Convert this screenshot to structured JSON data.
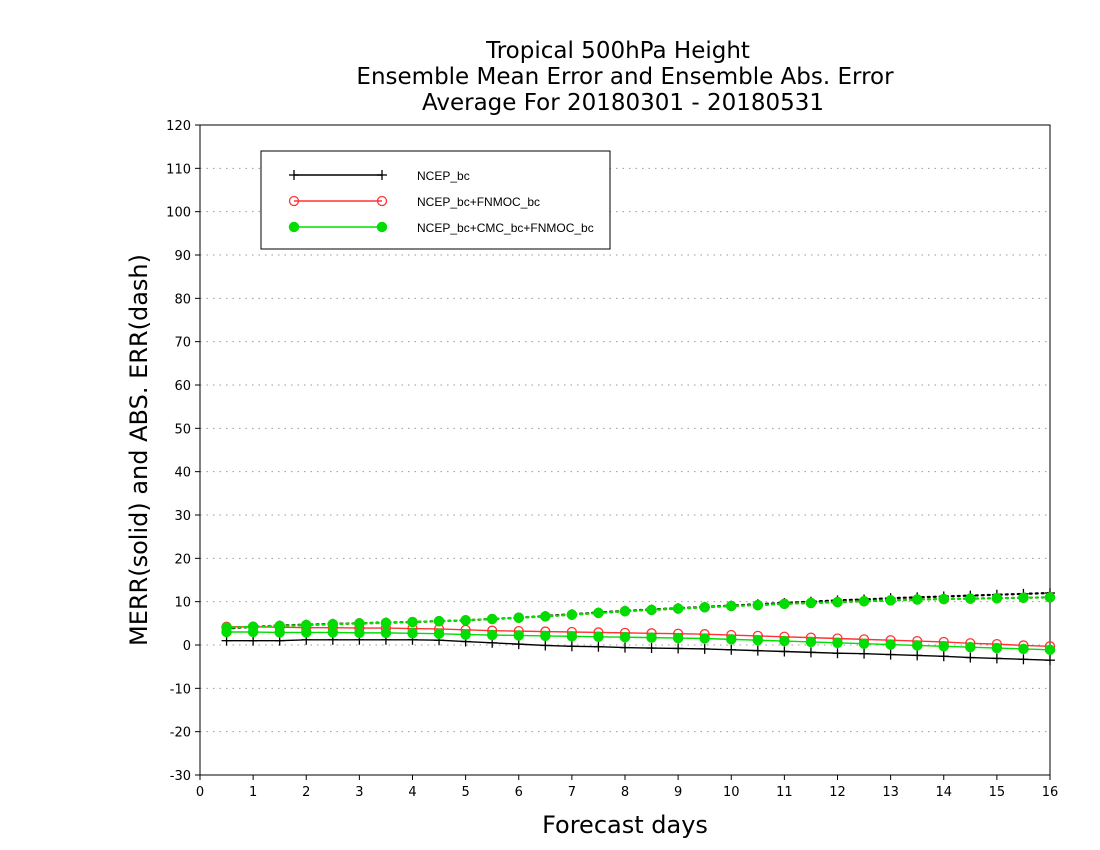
{
  "chart_data": {
    "type": "line",
    "title_lines": [
      "Tropical 500hPa Height",
      "Ensemble Mean Error and Ensemble Abs. Error",
      "Average For 20180301 - 20180531"
    ],
    "xlabel": "Forecast days",
    "ylabel": "MERR(solid) and ABS. ERR(dash)",
    "xlim": [
      0,
      16
    ],
    "ylim": [
      -30,
      120
    ],
    "x_ticks": [
      0,
      1,
      2,
      3,
      4,
      5,
      6,
      7,
      8,
      9,
      10,
      11,
      12,
      13,
      14,
      15,
      16
    ],
    "y_ticks": [
      -30,
      -20,
      -10,
      0,
      10,
      20,
      30,
      40,
      50,
      60,
      70,
      80,
      90,
      100,
      110,
      120
    ],
    "grid": "dotted horizontal",
    "legend_position": "top-left",
    "x": [
      0.5,
      1,
      1.5,
      2,
      2.5,
      3,
      3.5,
      4,
      4.5,
      5,
      5.5,
      6,
      6.5,
      7,
      7.5,
      8,
      8.5,
      9,
      9.5,
      10,
      10.5,
      11,
      11.5,
      12,
      12.5,
      13,
      13.5,
      14,
      14.5,
      15,
      15.5,
      16
    ],
    "series": [
      {
        "name": "NCEP_bc",
        "color": "#000000",
        "marker": "plus",
        "merr": [
          1.0,
          1.0,
          1.0,
          1.2,
          1.2,
          1.2,
          1.2,
          1.2,
          1.1,
          0.8,
          0.5,
          0.2,
          -0.1,
          -0.3,
          -0.4,
          -0.6,
          -0.7,
          -0.8,
          -0.9,
          -1.1,
          -1.3,
          -1.5,
          -1.7,
          -1.9,
          -2.0,
          -2.2,
          -2.4,
          -2.6,
          -2.9,
          -3.1,
          -3.3,
          -3.5
        ],
        "abs_err": [
          3.8,
          4.2,
          4.5,
          4.7,
          4.9,
          5.0,
          5.2,
          5.3,
          5.5,
          5.7,
          6.0,
          6.3,
          6.7,
          7.1,
          7.5,
          7.9,
          8.2,
          8.5,
          8.8,
          9.1,
          9.4,
          9.7,
          10.0,
          10.3,
          10.5,
          10.8,
          11.0,
          11.2,
          11.4,
          11.6,
          11.8,
          12.0
        ]
      },
      {
        "name": "NCEP_bc+FNMOC_bc",
        "color": "#ff3333",
        "marker": "open-circle",
        "merr": [
          4.2,
          4.2,
          4.1,
          4.0,
          4.0,
          3.9,
          3.9,
          3.8,
          3.7,
          3.5,
          3.3,
          3.2,
          3.1,
          3.0,
          2.9,
          2.8,
          2.7,
          2.6,
          2.5,
          2.3,
          2.1,
          1.9,
          1.7,
          1.5,
          1.3,
          1.1,
          0.9,
          0.7,
          0.4,
          0.2,
          -0.1,
          -0.3
        ],
        "abs_err": [
          4.0,
          4.2,
          4.4,
          4.6,
          4.8,
          5.0,
          5.1,
          5.3,
          5.5,
          5.7,
          6.0,
          6.3,
          6.6,
          7.0,
          7.4,
          7.8,
          8.1,
          8.4,
          8.7,
          9.0,
          9.2,
          9.5,
          9.7,
          9.9,
          10.1,
          10.3,
          10.5,
          10.6,
          10.7,
          10.8,
          10.9,
          11.0
        ]
      },
      {
        "name": "NCEP_bc+CMC_bc+FNMOC_bc",
        "color": "#00dd00",
        "marker": "filled-circle",
        "merr": [
          3.0,
          3.0,
          2.9,
          2.9,
          2.9,
          2.8,
          2.8,
          2.7,
          2.6,
          2.4,
          2.3,
          2.2,
          2.1,
          2.0,
          1.9,
          1.8,
          1.7,
          1.6,
          1.5,
          1.3,
          1.1,
          0.9,
          0.7,
          0.5,
          0.3,
          0.1,
          -0.1,
          -0.3,
          -0.5,
          -0.7,
          -0.9,
          -1.1
        ],
        "abs_err": [
          4.0,
          4.2,
          4.4,
          4.6,
          4.8,
          5.0,
          5.1,
          5.3,
          5.5,
          5.7,
          6.0,
          6.3,
          6.6,
          7.0,
          7.4,
          7.8,
          8.1,
          8.4,
          8.7,
          9.0,
          9.2,
          9.5,
          9.7,
          9.9,
          10.1,
          10.3,
          10.5,
          10.6,
          10.7,
          10.8,
          10.9,
          11.0
        ]
      }
    ]
  }
}
